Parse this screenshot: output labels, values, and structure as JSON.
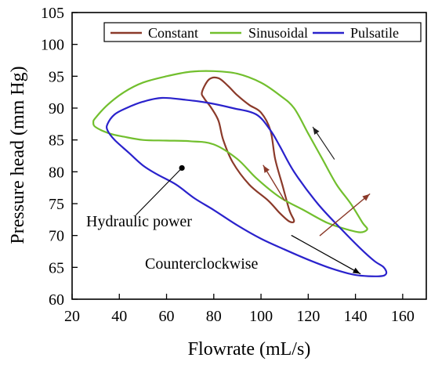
{
  "chart_data": {
    "type": "line",
    "xlabel": "Flowrate (mL/s)",
    "ylabel": "Pressure head (mm Hg)",
    "xlim": [
      20,
      170
    ],
    "ylim": [
      60,
      105
    ],
    "xticks": [
      20,
      40,
      60,
      80,
      100,
      120,
      140,
      160
    ],
    "yticks": [
      60,
      65,
      70,
      75,
      80,
      85,
      90,
      95,
      100,
      105
    ],
    "grid": false,
    "legend_position": "top-right",
    "series": [
      {
        "name": "Constant",
        "color": "#8B3A2A",
        "closed": true,
        "points": [
          [
            75,
            92.5
          ],
          [
            78,
            94.5
          ],
          [
            82,
            94.7
          ],
          [
            86,
            93.5
          ],
          [
            90,
            92.0
          ],
          [
            95,
            90.5
          ],
          [
            100,
            89.3
          ],
          [
            104,
            86.5
          ],
          [
            106,
            82.0
          ],
          [
            109,
            78.0
          ],
          [
            112,
            74.0
          ],
          [
            114,
            72.3
          ],
          [
            112,
            72.2
          ],
          [
            108,
            73.5
          ],
          [
            103,
            75.5
          ],
          [
            95,
            78.0
          ],
          [
            88,
            81.5
          ],
          [
            84,
            85.0
          ],
          [
            82,
            88.0
          ],
          [
            79,
            90.0
          ],
          [
            76,
            91.5
          ]
        ]
      },
      {
        "name": "Sinusoidal",
        "color": "#72BF2E",
        "closed": true,
        "points": [
          [
            30,
            88.5
          ],
          [
            35,
            90.5
          ],
          [
            42,
            92.5
          ],
          [
            50,
            94.0
          ],
          [
            60,
            95.0
          ],
          [
            70,
            95.7
          ],
          [
            80,
            95.8
          ],
          [
            90,
            95.4
          ],
          [
            100,
            94.0
          ],
          [
            108,
            92.0
          ],
          [
            114,
            90.0
          ],
          [
            120,
            86.0
          ],
          [
            126,
            82.0
          ],
          [
            132,
            78.0
          ],
          [
            138,
            75.0
          ],
          [
            143,
            72.0
          ],
          [
            145,
            71.0
          ],
          [
            142,
            70.5
          ],
          [
            136,
            71.0
          ],
          [
            128,
            72.0
          ],
          [
            118,
            74.0
          ],
          [
            108,
            76.0
          ],
          [
            98,
            79.0
          ],
          [
            90,
            82.0
          ],
          [
            80,
            84.3
          ],
          [
            70,
            84.8
          ],
          [
            60,
            84.9
          ],
          [
            50,
            85.0
          ],
          [
            42,
            85.5
          ],
          [
            36,
            86.0
          ],
          [
            30,
            87.0
          ],
          [
            29,
            87.8
          ]
        ]
      },
      {
        "name": "Pulsatile",
        "color": "#2A22CC",
        "closed": true,
        "points": [
          [
            38,
            89.0
          ],
          [
            43,
            90.0
          ],
          [
            50,
            91.0
          ],
          [
            58,
            91.6
          ],
          [
            68,
            91.3
          ],
          [
            78,
            90.8
          ],
          [
            88,
            90.0
          ],
          [
            98,
            89.0
          ],
          [
            104,
            86.5
          ],
          [
            108,
            84.0
          ],
          [
            114,
            80.0
          ],
          [
            124,
            75.0
          ],
          [
            134,
            71.0
          ],
          [
            142,
            68.0
          ],
          [
            148,
            66.0
          ],
          [
            152,
            65.0
          ],
          [
            153,
            64.0
          ],
          [
            150,
            63.6
          ],
          [
            140,
            63.8
          ],
          [
            130,
            64.8
          ],
          [
            120,
            66.2
          ],
          [
            110,
            67.8
          ],
          [
            100,
            69.5
          ],
          [
            90,
            71.6
          ],
          [
            80,
            74.0
          ],
          [
            72,
            75.8
          ],
          [
            64,
            78.0
          ],
          [
            56,
            79.6
          ],
          [
            50,
            81.0
          ],
          [
            44,
            83.0
          ],
          [
            38,
            85.0
          ],
          [
            35,
            86.5
          ],
          [
            35,
            87.5
          ]
        ]
      }
    ],
    "arrows": [
      {
        "from": [
          110,
          75.5
        ],
        "to": [
          101,
          81.0
        ],
        "color": "#8B3A2A",
        "width": 1.4
      },
      {
        "from": [
          125,
          70.0
        ],
        "to": [
          146,
          76.5
        ],
        "color": "#8B3A2A",
        "width": 1.4
      },
      {
        "from": [
          131,
          82.0
        ],
        "to": [
          122,
          87.0
        ],
        "color": "#1f1f1f",
        "width": 1.2
      },
      {
        "from": [
          113,
          70.0
        ],
        "to": [
          142,
          64.0
        ],
        "color": "#000000",
        "width": 1.3
      }
    ],
    "hydraulic_point": [
      66.5,
      80.6
    ],
    "hydraulic_leader": {
      "from": [
        66.5,
        80.6
      ],
      "to": [
        47,
        73.2
      ]
    },
    "annotations": {
      "hydraulic": "Hydraulic power",
      "counterclockwise": "Counterclockwise"
    }
  }
}
